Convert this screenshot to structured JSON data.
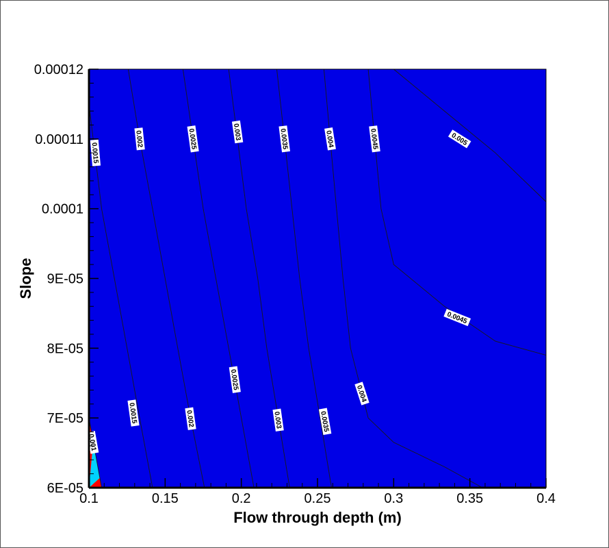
{
  "chart_data": {
    "type": "contour",
    "title": "",
    "xlabel": "Flow through depth (m)",
    "ylabel": "Slope",
    "xlim": [
      0.1,
      0.4
    ],
    "ylim": [
      6e-05,
      0.00012
    ],
    "x_tick_labels": [
      "0.1",
      "0.15",
      "0.2",
      "0.25",
      "0.3",
      "0.35",
      "0.4"
    ],
    "y_tick_labels": [
      "6E-05",
      "7E-05",
      "8E-05",
      "9E-05",
      "0.0001",
      "0.00011",
      "0.00012"
    ],
    "levels": [
      0.001,
      0.0015,
      0.002,
      0.0025,
      0.003,
      0.0035,
      0.004,
      0.0045,
      0.005
    ],
    "level_colors": [
      "#0000e6",
      "#1e64f0",
      "#00d2ff",
      "#00ffb4",
      "#00ee3a",
      "#78fb00",
      "#c8f500",
      "#ffdc00",
      "#ff7800",
      "#ff0000"
    ],
    "contours": [
      {
        "level": 0.001,
        "label": "0.001",
        "points": [
          [
            0.1,
            7e-05
          ],
          [
            0.1083,
            6e-05
          ]
        ]
      },
      {
        "level": 0.0015,
        "label": "0.0015",
        "points": [
          [
            0.1,
            0.000115
          ],
          [
            0.1083,
            0.0001
          ],
          [
            0.1167,
            9e-05
          ],
          [
            0.125,
            8e-05
          ],
          [
            0.1333,
            7e-05
          ],
          [
            0.1417,
            6e-05
          ]
        ]
      },
      {
        "level": 0.002,
        "label": "0.002",
        "points": [
          [
            0.1258,
            0.00012
          ],
          [
            0.1333,
            0.00011
          ],
          [
            0.1417,
            0.0001
          ],
          [
            0.15,
            9e-05
          ],
          [
            0.1583,
            8e-05
          ],
          [
            0.1667,
            7e-05
          ],
          [
            0.1758,
            6e-05
          ]
        ]
      },
      {
        "level": 0.0025,
        "label": "0.0025",
        "points": [
          [
            0.1617,
            0.00012
          ],
          [
            0.1683,
            0.00011
          ],
          [
            0.175,
            0.0001
          ],
          [
            0.1833,
            9e-05
          ],
          [
            0.1917,
            8e-05
          ],
          [
            0.2,
            7e-05
          ],
          [
            0.2083,
            6e-05
          ]
        ]
      },
      {
        "level": 0.003,
        "label": "0.003",
        "points": [
          [
            0.1917,
            0.00012
          ],
          [
            0.1975,
            0.00011
          ],
          [
            0.2033,
            0.0001
          ],
          [
            0.2108,
            9e-05
          ],
          [
            0.2167,
            8e-05
          ],
          [
            0.2242,
            7e-05
          ],
          [
            0.2317,
            6e-05
          ]
        ]
      },
      {
        "level": 0.0035,
        "label": "0.0035",
        "points": [
          [
            0.2233,
            0.00012
          ],
          [
            0.2283,
            0.00011
          ],
          [
            0.2333,
            0.0001
          ],
          [
            0.2383,
            9e-05
          ],
          [
            0.2442,
            8e-05
          ],
          [
            0.2517,
            7e-05
          ],
          [
            0.2592,
            6e-05
          ]
        ]
      },
      {
        "level": 0.004,
        "label": "0.004",
        "points": [
          [
            0.2542,
            0.00012
          ],
          [
            0.2583,
            0.00011
          ],
          [
            0.2625,
            0.0001
          ],
          [
            0.2667,
            9e-05
          ],
          [
            0.2717,
            8e-05
          ],
          [
            0.2833,
            7e-05
          ],
          [
            0.3,
            6.65e-05
          ],
          [
            0.3333,
            6.3e-05
          ],
          [
            0.3583,
            6e-05
          ]
        ]
      },
      {
        "level": 0.0045,
        "label": "0.0045",
        "points": [
          [
            0.2833,
            0.00012
          ],
          [
            0.2875,
            0.00011
          ],
          [
            0.2917,
            0.0001
          ],
          [
            0.3,
            9.2e-05
          ],
          [
            0.3333,
            8.6e-05
          ],
          [
            0.3667,
            8.1e-05
          ],
          [
            0.3833,
            8e-05
          ],
          [
            0.4,
            7.9e-05
          ]
        ]
      },
      {
        "level": 0.005,
        "label": "0.005",
        "points": [
          [
            0.3,
            0.00012
          ],
          [
            0.3333,
            0.000114
          ],
          [
            0.3667,
            0.000108
          ],
          [
            0.4,
            0.000101
          ]
        ]
      }
    ],
    "label_positions": [
      {
        "text": "0.0015",
        "x": 0.1042,
        "y": 0.000108,
        "angle": 85
      },
      {
        "text": "0.002",
        "x": 0.1333,
        "y": 0.00011,
        "angle": 84
      },
      {
        "text": "0.0025",
        "x": 0.1683,
        "y": 0.00011,
        "angle": 82
      },
      {
        "text": "0.003",
        "x": 0.1975,
        "y": 0.000111,
        "angle": 82
      },
      {
        "text": "0.0035",
        "x": 0.2283,
        "y": 0.00011,
        "angle": 83
      },
      {
        "text": "0.004",
        "x": 0.2583,
        "y": 0.00011,
        "angle": 81
      },
      {
        "text": "0.0045",
        "x": 0.2875,
        "y": 0.00011,
        "angle": 83
      },
      {
        "text": "0.005",
        "x": 0.3433,
        "y": 0.00011,
        "angle": 32
      },
      {
        "text": "0.0045",
        "x": 0.3417,
        "y": 8.44e-05,
        "angle": 22
      },
      {
        "text": "0.004",
        "x": 0.2792,
        "y": 7.35e-05,
        "angle": 72
      },
      {
        "text": "0.0035",
        "x": 0.255,
        "y": 6.95e-05,
        "angle": 80
      },
      {
        "text": "0.003",
        "x": 0.2242,
        "y": 6.97e-05,
        "angle": 82
      },
      {
        "text": "0.0025",
        "x": 0.1958,
        "y": 7.55e-05,
        "angle": 82
      },
      {
        "text": "0.002",
        "x": 0.1667,
        "y": 6.99e-05,
        "angle": 82
      },
      {
        "text": "0.0015",
        "x": 0.1292,
        "y": 7.07e-05,
        "angle": 82
      },
      {
        "text": "0.001",
        "x": 0.1025,
        "y": 6.65e-05,
        "angle": 80
      }
    ]
  }
}
